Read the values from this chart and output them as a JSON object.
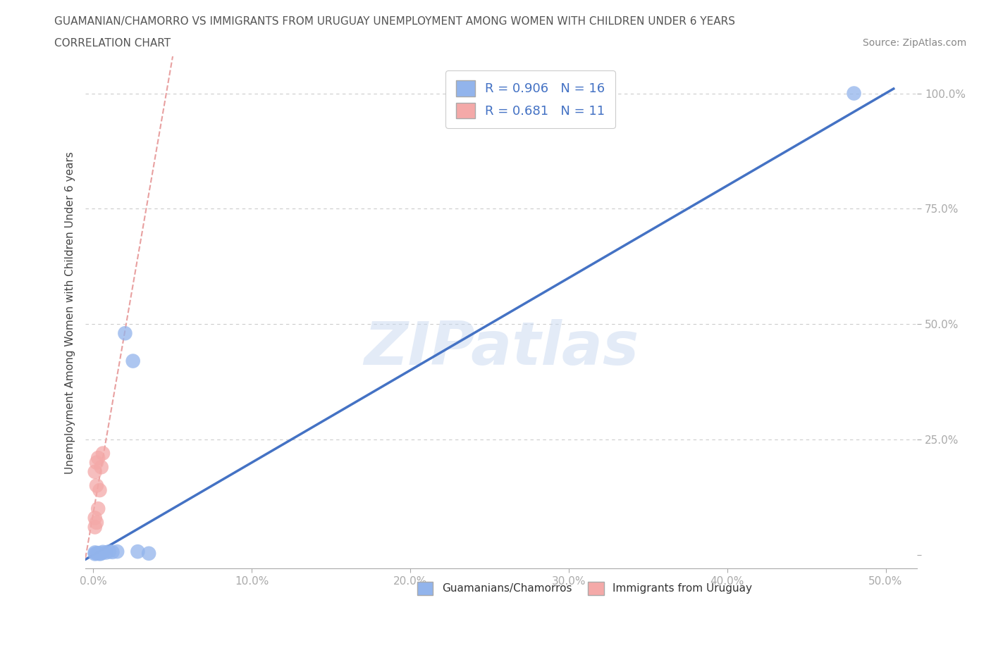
{
  "title_line1": "GUAMANIAN/CHAMORRO VS IMMIGRANTS FROM URUGUAY UNEMPLOYMENT AMONG WOMEN WITH CHILDREN UNDER 6 YEARS",
  "title_line2": "CORRELATION CHART",
  "source_text": "Source: ZipAtlas.com",
  "ylabel": "Unemployment Among Women with Children Under 6 years",
  "watermark": "ZIPatlas",
  "blue_R": 0.906,
  "blue_N": 16,
  "pink_R": 0.681,
  "pink_N": 11,
  "blue_line_color": "#4472C4",
  "pink_line_color": "#E8A0A0",
  "blue_dot_color": "#92B4EC",
  "pink_dot_color": "#F4A9A8",
  "xlim": [
    -0.005,
    0.52
  ],
  "ylim": [
    -0.03,
    1.08
  ],
  "xticks": [
    0.0,
    0.1,
    0.2,
    0.3,
    0.4,
    0.5
  ],
  "xtick_labels": [
    "0.0%",
    "10.0%",
    "20.0%",
    "30.0%",
    "40.0%",
    "50.0%"
  ],
  "yticks": [
    0.0,
    0.25,
    0.5,
    0.75,
    1.0
  ],
  "ytick_labels": [
    "",
    "25.0%",
    "50.0%",
    "75.0%",
    "100.0%"
  ],
  "grid_color": "#CCCCCC",
  "background_color": "#FFFFFF",
  "title_color": "#555555",
  "tick_label_color": "#4472C4",
  "legend_R_color": "#4472C4",
  "blue_points_x": [
    0.001,
    0.002,
    0.003,
    0.004,
    0.005,
    0.006,
    0.008,
    0.01,
    0.012,
    0.015,
    0.02,
    0.025,
    0.028,
    0.035,
    0.48,
    0.001
  ],
  "blue_points_y": [
    0.005,
    0.003,
    0.004,
    0.002,
    0.003,
    0.006,
    0.005,
    0.007,
    0.006,
    0.007,
    0.48,
    0.42,
    0.007,
    0.003,
    1.0,
    0.002
  ],
  "pink_points_x": [
    0.001,
    0.002,
    0.003,
    0.004,
    0.005,
    0.006,
    0.002,
    0.001,
    0.003,
    0.002,
    0.001
  ],
  "pink_points_y": [
    0.18,
    0.2,
    0.21,
    0.14,
    0.19,
    0.22,
    0.15,
    0.08,
    0.1,
    0.07,
    0.06
  ]
}
